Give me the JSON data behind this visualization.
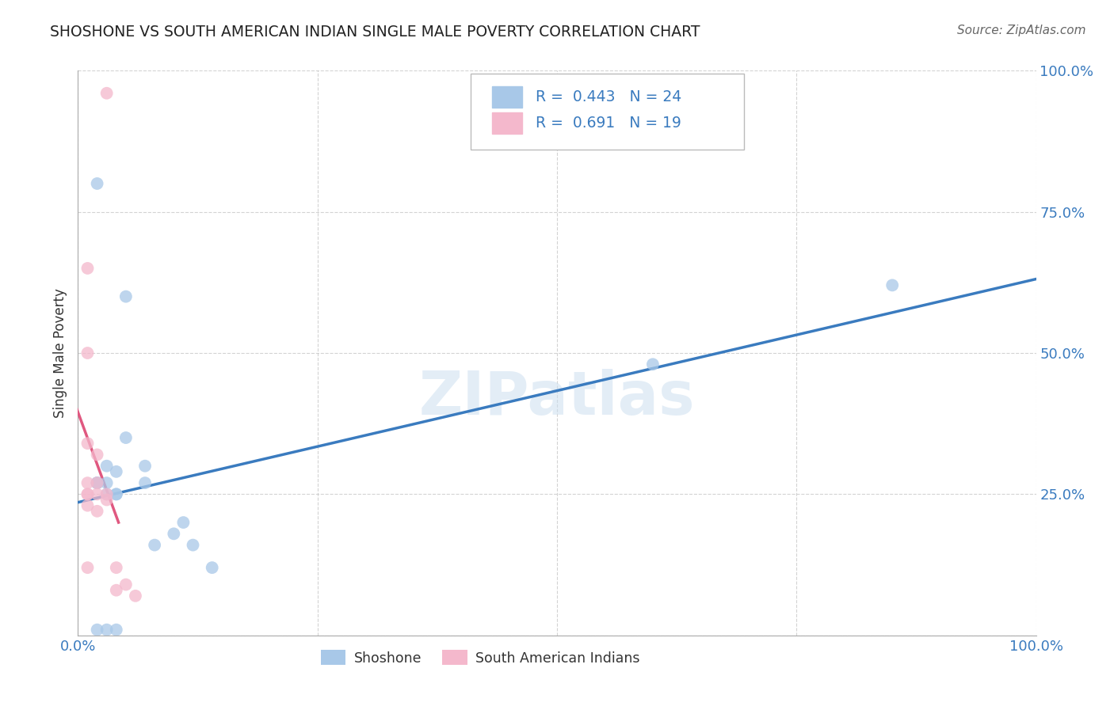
{
  "title": "SHOSHONE VS SOUTH AMERICAN INDIAN SINGLE MALE POVERTY CORRELATION CHART",
  "source": "Source: ZipAtlas.com",
  "ylabel": "Single Male Poverty",
  "xlim": [
    0.0,
    1.0
  ],
  "ylim": [
    0.0,
    1.0
  ],
  "shoshone_color": "#a8c8e8",
  "sa_indian_color": "#f4b8cc",
  "shoshone_line_color": "#3a7bbf",
  "sa_indian_line_color": "#e05880",
  "R_shoshone": 0.443,
  "N_shoshone": 24,
  "R_sa_indian": 0.691,
  "N_sa_indian": 19,
  "legend_text_color": "#3a7bbf",
  "tick_color": "#3a7bbf",
  "shoshone_x": [
    0.02,
    0.04,
    0.04,
    0.05,
    0.04,
    0.03,
    0.03,
    0.02,
    0.03,
    0.02,
    0.05,
    0.07,
    0.07,
    0.08,
    0.1,
    0.11,
    0.12,
    0.14,
    0.02,
    0.03,
    0.04,
    0.6,
    0.85,
    0.02
  ],
  "shoshone_y": [
    0.27,
    0.25,
    0.29,
    0.6,
    0.25,
    0.27,
    0.3,
    0.27,
    0.25,
    0.27,
    0.35,
    0.27,
    0.3,
    0.16,
    0.18,
    0.2,
    0.16,
    0.12,
    0.01,
    0.01,
    0.01,
    0.48,
    0.62,
    0.8
  ],
  "sa_indian_x": [
    0.03,
    0.01,
    0.01,
    0.01,
    0.01,
    0.01,
    0.01,
    0.01,
    0.02,
    0.02,
    0.02,
    0.02,
    0.03,
    0.03,
    0.04,
    0.04,
    0.05,
    0.06,
    0.01
  ],
  "sa_indian_y": [
    0.96,
    0.65,
    0.5,
    0.34,
    0.27,
    0.25,
    0.25,
    0.23,
    0.32,
    0.27,
    0.25,
    0.22,
    0.24,
    0.25,
    0.12,
    0.08,
    0.09,
    0.07,
    0.12
  ]
}
